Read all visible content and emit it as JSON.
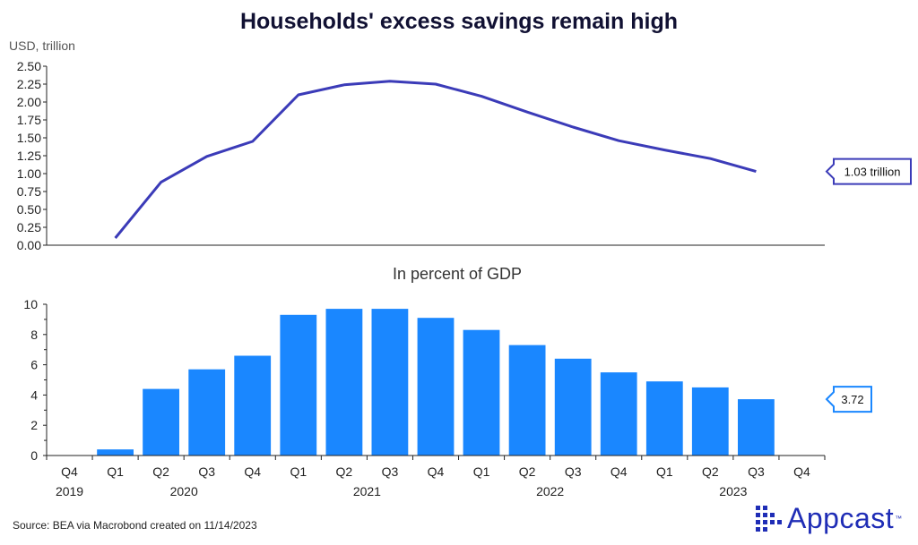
{
  "title": "Households' excess savings remain high",
  "source": "Source: BEA via Macrobond created on 11/14/2023",
  "logo": {
    "text": "Appcast",
    "tm": "™",
    "color": "#1f2db6"
  },
  "chart_data": [
    {
      "type": "line",
      "ylabel": "USD, trillion",
      "ylim": [
        0,
        2.5
      ],
      "yticks": [
        "0.00",
        "0.25",
        "0.50",
        "0.75",
        "1.00",
        "1.25",
        "1.50",
        "1.75",
        "2.00",
        "2.25",
        "2.50"
      ],
      "x": [
        "2020 Q1",
        "2020 Q2",
        "2020 Q3",
        "2020 Q4",
        "2021 Q1",
        "2021 Q2",
        "2021 Q3",
        "2021 Q4",
        "2022 Q1",
        "2022 Q2",
        "2022 Q3",
        "2022 Q4",
        "2023 Q1",
        "2023 Q2",
        "2023 Q3"
      ],
      "values": [
        0.1,
        0.88,
        1.24,
        1.45,
        2.1,
        2.24,
        2.29,
        2.25,
        2.08,
        1.86,
        1.65,
        1.46,
        1.33,
        1.21,
        1.03
      ],
      "color": "#3b3bb8",
      "end_label": "1.03 trillion"
    },
    {
      "type": "bar",
      "title": "In percent of GDP",
      "ylim": [
        0,
        10
      ],
      "yticks": [
        "0",
        "2",
        "4",
        "6",
        "8",
        "10"
      ],
      "x": [
        "2020 Q1",
        "2020 Q2",
        "2020 Q3",
        "2020 Q4",
        "2021 Q1",
        "2021 Q2",
        "2021 Q3",
        "2021 Q4",
        "2022 Q1",
        "2022 Q2",
        "2022 Q3",
        "2022 Q4",
        "2023 Q1",
        "2023 Q2",
        "2023 Q3"
      ],
      "values": [
        0.4,
        4.4,
        5.7,
        6.6,
        9.3,
        9.7,
        9.7,
        9.1,
        8.3,
        7.3,
        6.4,
        5.5,
        4.9,
        4.5,
        3.72
      ],
      "color": "#1a87ff",
      "end_label": "3.72"
    }
  ],
  "xaxis": {
    "quarters": [
      "Q4",
      "Q1",
      "Q2",
      "Q3",
      "Q4",
      "Q1",
      "Q2",
      "Q3",
      "Q4",
      "Q1",
      "Q2",
      "Q3",
      "Q4",
      "Q1",
      "Q2",
      "Q3",
      "Q4"
    ],
    "years": [
      "2019",
      "2020",
      "2021",
      "2022",
      "2023"
    ]
  }
}
